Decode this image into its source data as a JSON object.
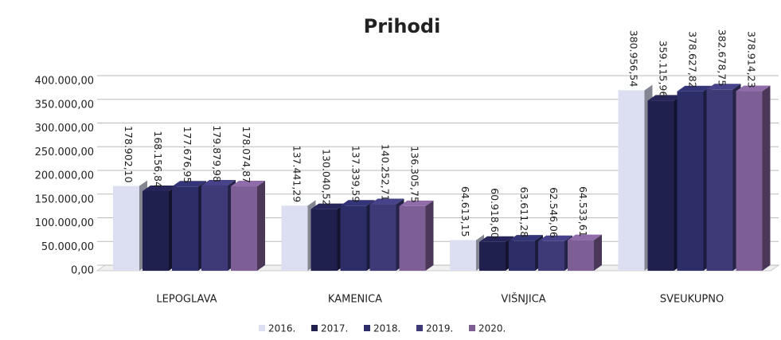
{
  "chart_data": {
    "type": "bar3d",
    "title": "Prihodi",
    "categories": [
      "LEPOGLAVA",
      "KAMENICA",
      "VIŠNJICA",
      "SVEUKUPNO"
    ],
    "series": [
      {
        "name": "2016.",
        "color": "#dcdff2",
        "values": [
          178902.1,
          137441.29,
          64613.15,
          380956.54
        ],
        "value_labels": [
          "178.902,10",
          "137.441,29",
          "64.613,15",
          "380.956,54"
        ]
      },
      {
        "name": "2017.",
        "color": "#20204e",
        "values": [
          168156.84,
          130040.52,
          60918.6,
          359115.96
        ],
        "value_labels": [
          "168.156,84",
          "130.040,52",
          "60.918,60",
          "359.115,96"
        ]
      },
      {
        "name": "2018.",
        "color": "#2d2d68",
        "values": [
          177676.95,
          137339.59,
          63611.28,
          378627.82
        ],
        "value_labels": [
          "177.676,95",
          "137.339,59",
          "63.611,28",
          "378.627,82"
        ]
      },
      {
        "name": "2019.",
        "color": "#3e3a78",
        "values": [
          179879.98,
          140252.71,
          62546.06,
          382678.75
        ],
        "value_labels": [
          "179.879,98",
          "140.252,71",
          "62.546,06",
          "382.678,75"
        ]
      },
      {
        "name": "2020.",
        "color": "#7d5e95",
        "values": [
          178074.87,
          136305.75,
          64533.61,
          378914.23
        ],
        "value_labels": [
          "178.074,87",
          "136.305,75",
          "64.533,61",
          "378.914,23"
        ]
      }
    ],
    "ylim": [
      0,
      400000
    ],
    "yticks": [
      {
        "value": 0,
        "label": "0,00"
      },
      {
        "value": 50000,
        "label": "50.000,00"
      },
      {
        "value": 100000,
        "label": "100.000,00"
      },
      {
        "value": 150000,
        "label": "150.000,00"
      },
      {
        "value": 200000,
        "label": "200.000,00"
      },
      {
        "value": 250000,
        "label": "250.000,00"
      },
      {
        "value": 300000,
        "label": "300.000,00"
      },
      {
        "value": 350000,
        "label": "350.000,00"
      },
      {
        "value": 400000,
        "label": "400.000,00"
      }
    ],
    "grid": true,
    "legend": "bottom"
  }
}
